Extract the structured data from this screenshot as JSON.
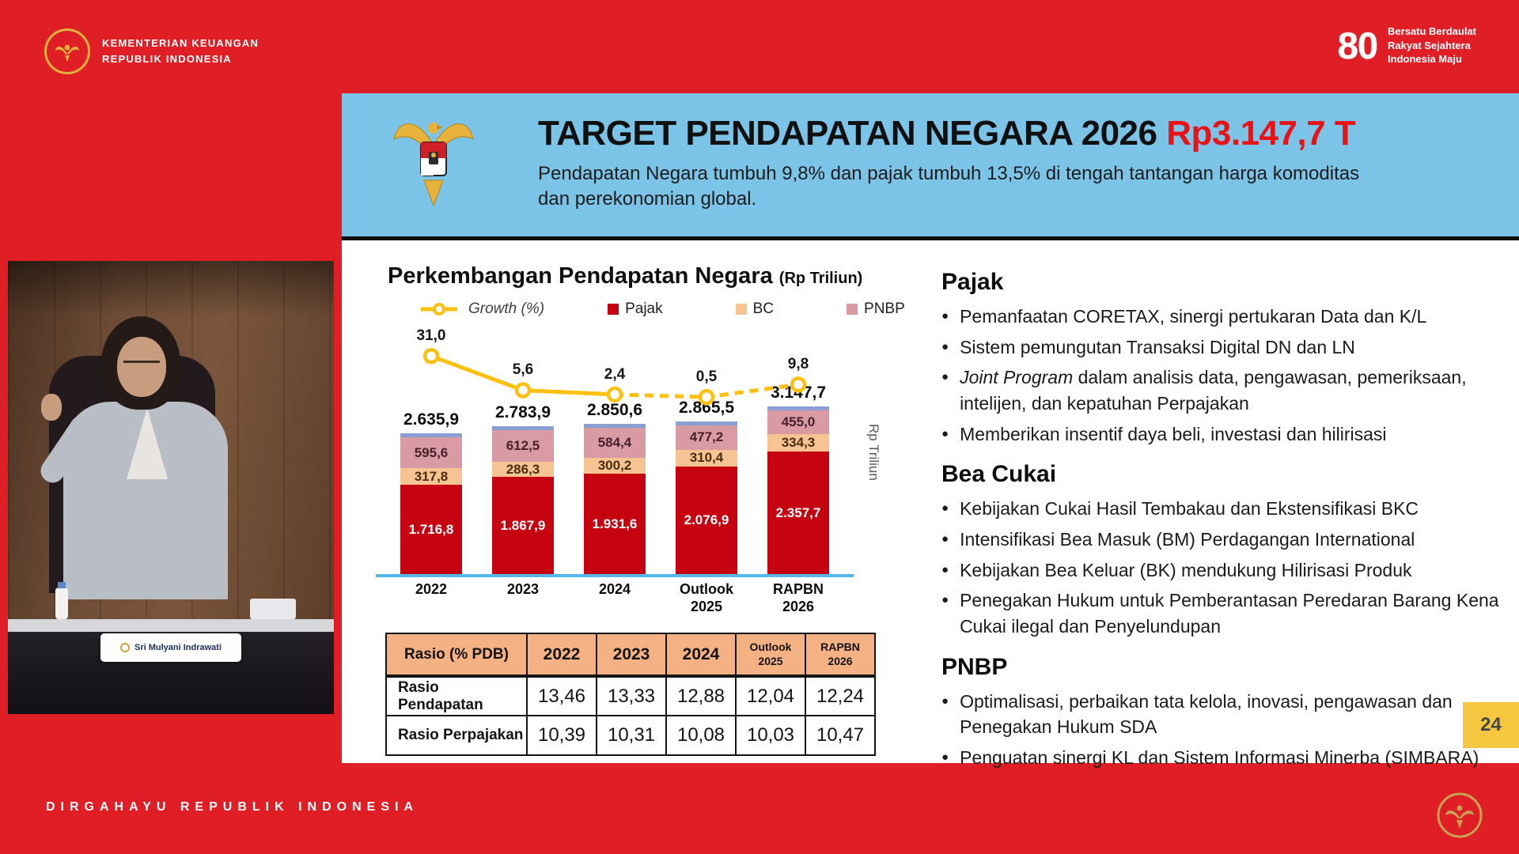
{
  "brand": {
    "ministry_line1": "KEMENTERIAN KEUANGAN",
    "ministry_line2": "REPUBLIK INDONESIA",
    "anniversary_number": "80",
    "anniversary_line1": "Bersatu Berdaulat",
    "anniversary_line2": "Rakyat Sejahtera",
    "anniversary_line3": "Indonesia Maju",
    "footer_text": "DIRGAHAYU REPUBLIK INDONESIA"
  },
  "speaker": {
    "nameplate": "Sri Mulyani Indrawati"
  },
  "slide": {
    "title": "TARGET PENDAPATAN NEGARA 2026",
    "title_value": "Rp3.147,7 T",
    "subtitle": "Pendapatan Negara tumbuh 9,8% dan pajak tumbuh 13,5% di tengah tantangan harga komoditas dan perekonomian global.",
    "page_number": "24"
  },
  "chart_data": {
    "type": "bar",
    "title": "Perkembangan Pendapatan Negara",
    "unit_label": "(Rp Triliun)",
    "right_axis_label": "Rp Triliun",
    "legend": [
      "Growth (%)",
      "Pajak",
      "BC",
      "PNBP"
    ],
    "categories": [
      "2022",
      "2023",
      "2024",
      "Outlook\n2025",
      "RAPBN\n2026"
    ],
    "totals": [
      2635.9,
      2783.9,
      2850.6,
      2865.5,
      3147.7
    ],
    "totals_display": [
      "2.635,9",
      "2.783,9",
      "2.850,6",
      "2.865,5",
      "3.147,7"
    ],
    "series": [
      {
        "name": "Pajak",
        "color": "#c60310",
        "values": [
          1716.8,
          1867.9,
          1931.6,
          2076.9,
          2357.7
        ],
        "display": [
          "1.716,8",
          "1.867,9",
          "1.931,6",
          "2.076,9",
          "2.357,7"
        ]
      },
      {
        "name": "BC",
        "color": "#f6c493",
        "values": [
          317.8,
          286.3,
          300.2,
          310.4,
          334.3
        ],
        "display": [
          "317,8",
          "286,3",
          "300,2",
          "310,4",
          "334,3"
        ]
      },
      {
        "name": "PNBP",
        "color": "#d89ba4",
        "values": [
          595.6,
          612.5,
          584.4,
          477.2,
          455.0
        ],
        "display": [
          "595,6",
          "612,5",
          "584,4",
          "477,2",
          "455,0"
        ]
      }
    ],
    "growth": {
      "name": "Growth (%)",
      "color": "#ffc010",
      "dashed_from_index": 2,
      "values": [
        31.0,
        5.6,
        2.4,
        0.5,
        9.8
      ],
      "display": [
        "31,0",
        "5,6",
        "2,4",
        "0,5",
        "9,8"
      ]
    }
  },
  "table": {
    "header": [
      "Rasio (% PDB)",
      "2022",
      "2023",
      "2024",
      "Outlook\n2025",
      "RAPBN\n2026"
    ],
    "rows": [
      {
        "label": "Rasio Pendapatan",
        "values": [
          "13,46",
          "13,33",
          "12,88",
          "12,04",
          "12,24"
        ]
      },
      {
        "label": "Rasio Perpajakan",
        "values": [
          "10,39",
          "10,31",
          "10,08",
          "10,03",
          "10,47"
        ]
      }
    ]
  },
  "sections": [
    {
      "heading": "Pajak",
      "bullets": [
        {
          "t": "Pemanfaatan CORETAX, sinergi pertukaran Data dan K/L"
        },
        {
          "t": "Sistem pemungutan Transaksi Digital DN dan LN"
        },
        {
          "i": "Joint Program",
          "t": " dalam analisis data, pengawasan, pemeriksaan, intelijen, dan kepatuhan Perpajakan"
        },
        {
          "t": "Memberikan insentif daya beli, investasi dan hilirisasi"
        }
      ]
    },
    {
      "heading": "Bea Cukai",
      "bullets": [
        {
          "t": "Kebijakan Cukai Hasil Tembakau dan Ekstensifikasi BKC"
        },
        {
          "t": "Intensifikasi Bea Masuk (BM) Perdagangan International"
        },
        {
          "t": "Kebijakan Bea Keluar (BK) mendukung Hilirisasi Produk"
        },
        {
          "t": "Penegakan Hukum untuk Pemberantasan Peredaran Barang Kena Cukai ilegal dan Penyelundupan"
        }
      ]
    },
    {
      "heading": "PNBP",
      "bullets": [
        {
          "t": "Optimalisasi, perbaikan tata kelola, inovasi, pengawasan dan Penegakan Hukum SDA"
        },
        {
          "t": "Penguatan sinergi KL dan Sistem Informasi Minerba (SIMBARA)"
        }
      ]
    }
  ],
  "colors": {
    "frame_red": "#e01e25",
    "header_blue": "#7cc3e8",
    "title_red": "#e81317",
    "table_header": "#f4b183",
    "baseline_blue": "#56b7e9",
    "page_tab_yellow": "#f5c63f"
  }
}
